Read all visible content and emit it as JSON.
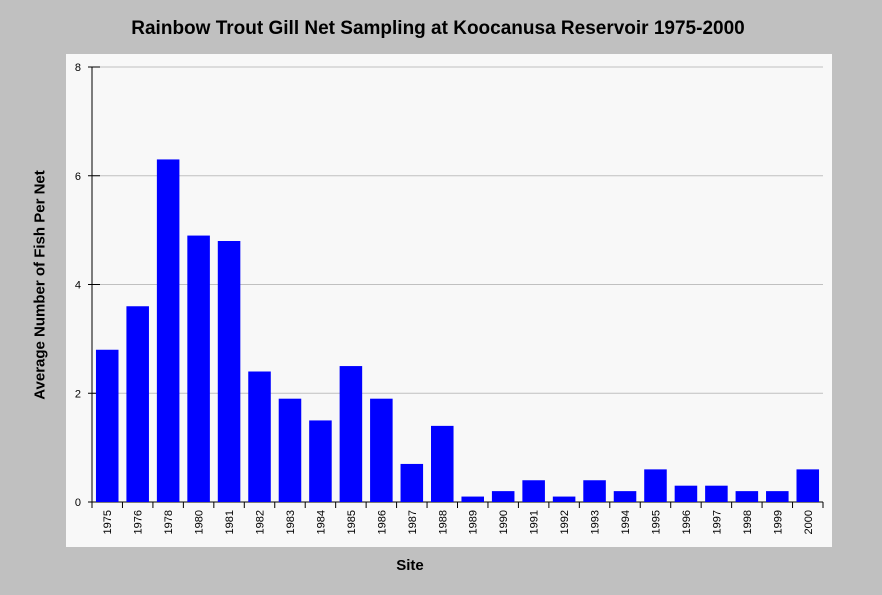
{
  "chart_data": {
    "type": "bar",
    "title": "Rainbow Trout Gill Net Sampling at Koocanusa Reservoir 1975-2000",
    "xlabel": "Site",
    "ylabel": "Average Number of Fish Per Net",
    "categories": [
      "1975",
      "1976",
      "1978",
      "1980",
      "1981",
      "1982",
      "1983",
      "1984",
      "1985",
      "1986",
      "1987",
      "1988",
      "1989",
      "1990",
      "1991",
      "1992",
      "1993",
      "1994",
      "1995",
      "1996",
      "1997",
      "1998",
      "1999",
      "2000"
    ],
    "values": [
      2.8,
      3.6,
      6.3,
      4.9,
      4.8,
      2.4,
      1.9,
      1.5,
      2.5,
      1.9,
      0.7,
      1.4,
      0.1,
      0.2,
      0.4,
      0.1,
      0.4,
      0.2,
      0.6,
      0.3,
      0.3,
      0.2,
      0.2,
      0.6
    ],
    "ylim": [
      0,
      8
    ],
    "yticks": [
      0,
      2,
      4,
      6,
      8
    ],
    "grid": true,
    "legend": "none",
    "bar_color": "#0000ff",
    "background_color": "#c0c0c0",
    "plot_color": "#f8f8f8"
  }
}
